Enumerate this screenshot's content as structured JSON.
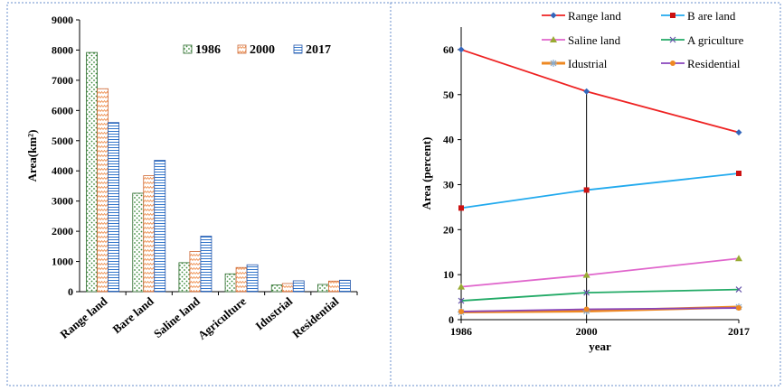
{
  "chart_data": [
    {
      "type": "bar",
      "categories": [
        "Range land",
        "Bare land",
        "Saline land",
        "Agriculture",
        "Idustrial",
        "Residential"
      ],
      "series": [
        {
          "name": "1986",
          "values": [
            7920,
            3260,
            960,
            590,
            220,
            240
          ]
        },
        {
          "name": "2000",
          "values": [
            6720,
            3840,
            1330,
            800,
            270,
            350
          ]
        },
        {
          "name": "2017",
          "values": [
            5600,
            4350,
            1840,
            890,
            360,
            380
          ]
        }
      ],
      "ylabel": "Area(km²)",
      "xlabel": "",
      "ylim": [
        0,
        9000
      ],
      "yticks": [
        "0",
        "1000",
        "2000",
        "3000",
        "4000",
        "5000",
        "6000",
        "7000",
        "8000",
        "9000"
      ],
      "grid": false,
      "legend_position": "top-right"
    },
    {
      "type": "line",
      "x": [
        1986,
        2000,
        2017
      ],
      "xticks": [
        "1986",
        "2000",
        "2017"
      ],
      "series": [
        {
          "name": "Range land",
          "values": [
            60,
            50.7,
            41.6
          ],
          "color": "#ee2222",
          "marker": "diamond"
        },
        {
          "name": "B are land",
          "values": [
            24.8,
            28.8,
            32.5
          ],
          "color": "#22aaee",
          "marker": "square"
        },
        {
          "name": "Saline land",
          "values": [
            7.3,
            9.9,
            13.6
          ],
          "color": "#e066cc",
          "marker": "triangle"
        },
        {
          "name": "A griculture",
          "values": [
            4.2,
            6.0,
            6.7
          ],
          "color": "#22aa66",
          "marker": "x"
        },
        {
          "name": "Idustrial",
          "values": [
            1.7,
            1.9,
            2.8
          ],
          "color": "#ee8822",
          "marker": "star"
        },
        {
          "name": "Residential",
          "values": [
            1.8,
            2.3,
            2.6
          ],
          "color": "#8844bb",
          "marker": "circle"
        }
      ],
      "xlabel": "year",
      "ylabel": "Area (percent)",
      "xlim": [
        1986,
        2017
      ],
      "ylim": [
        0,
        65
      ],
      "yticks": [
        "0",
        "10",
        "20",
        "30",
        "40",
        "50",
        "60"
      ],
      "grid": false,
      "legend_position": "top",
      "annotation": "vertical reference line at 2000"
    }
  ]
}
